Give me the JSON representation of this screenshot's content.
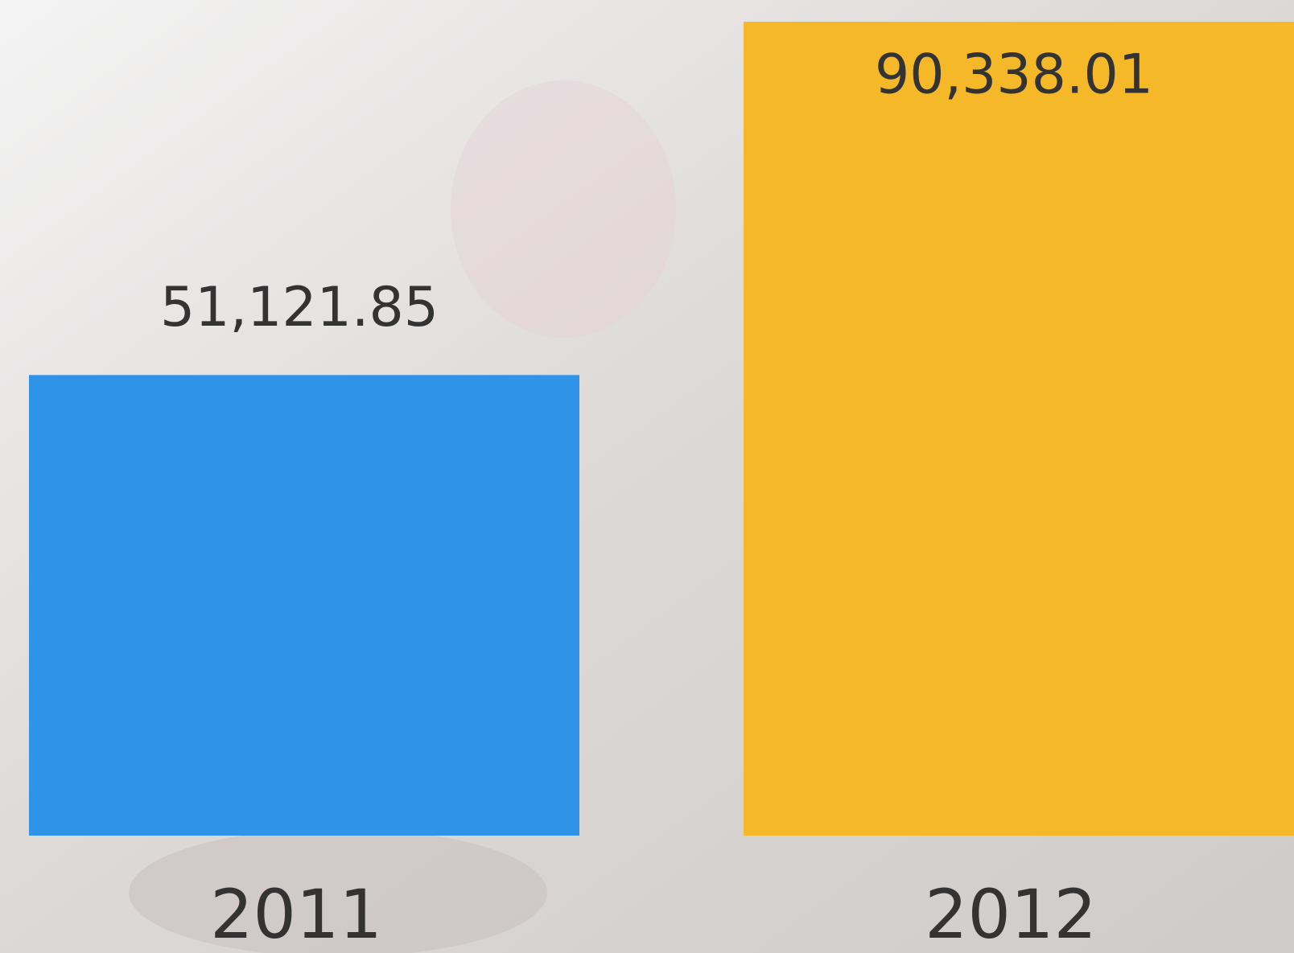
{
  "chart_data": {
    "type": "bar",
    "categories": [
      "2011",
      "2012"
    ],
    "values": [
      51121.85,
      90338.01
    ],
    "value_labels": [
      "51,121.85",
      "90,338.01"
    ],
    "colors": [
      "#2f93e8",
      "#f5b829"
    ]
  }
}
